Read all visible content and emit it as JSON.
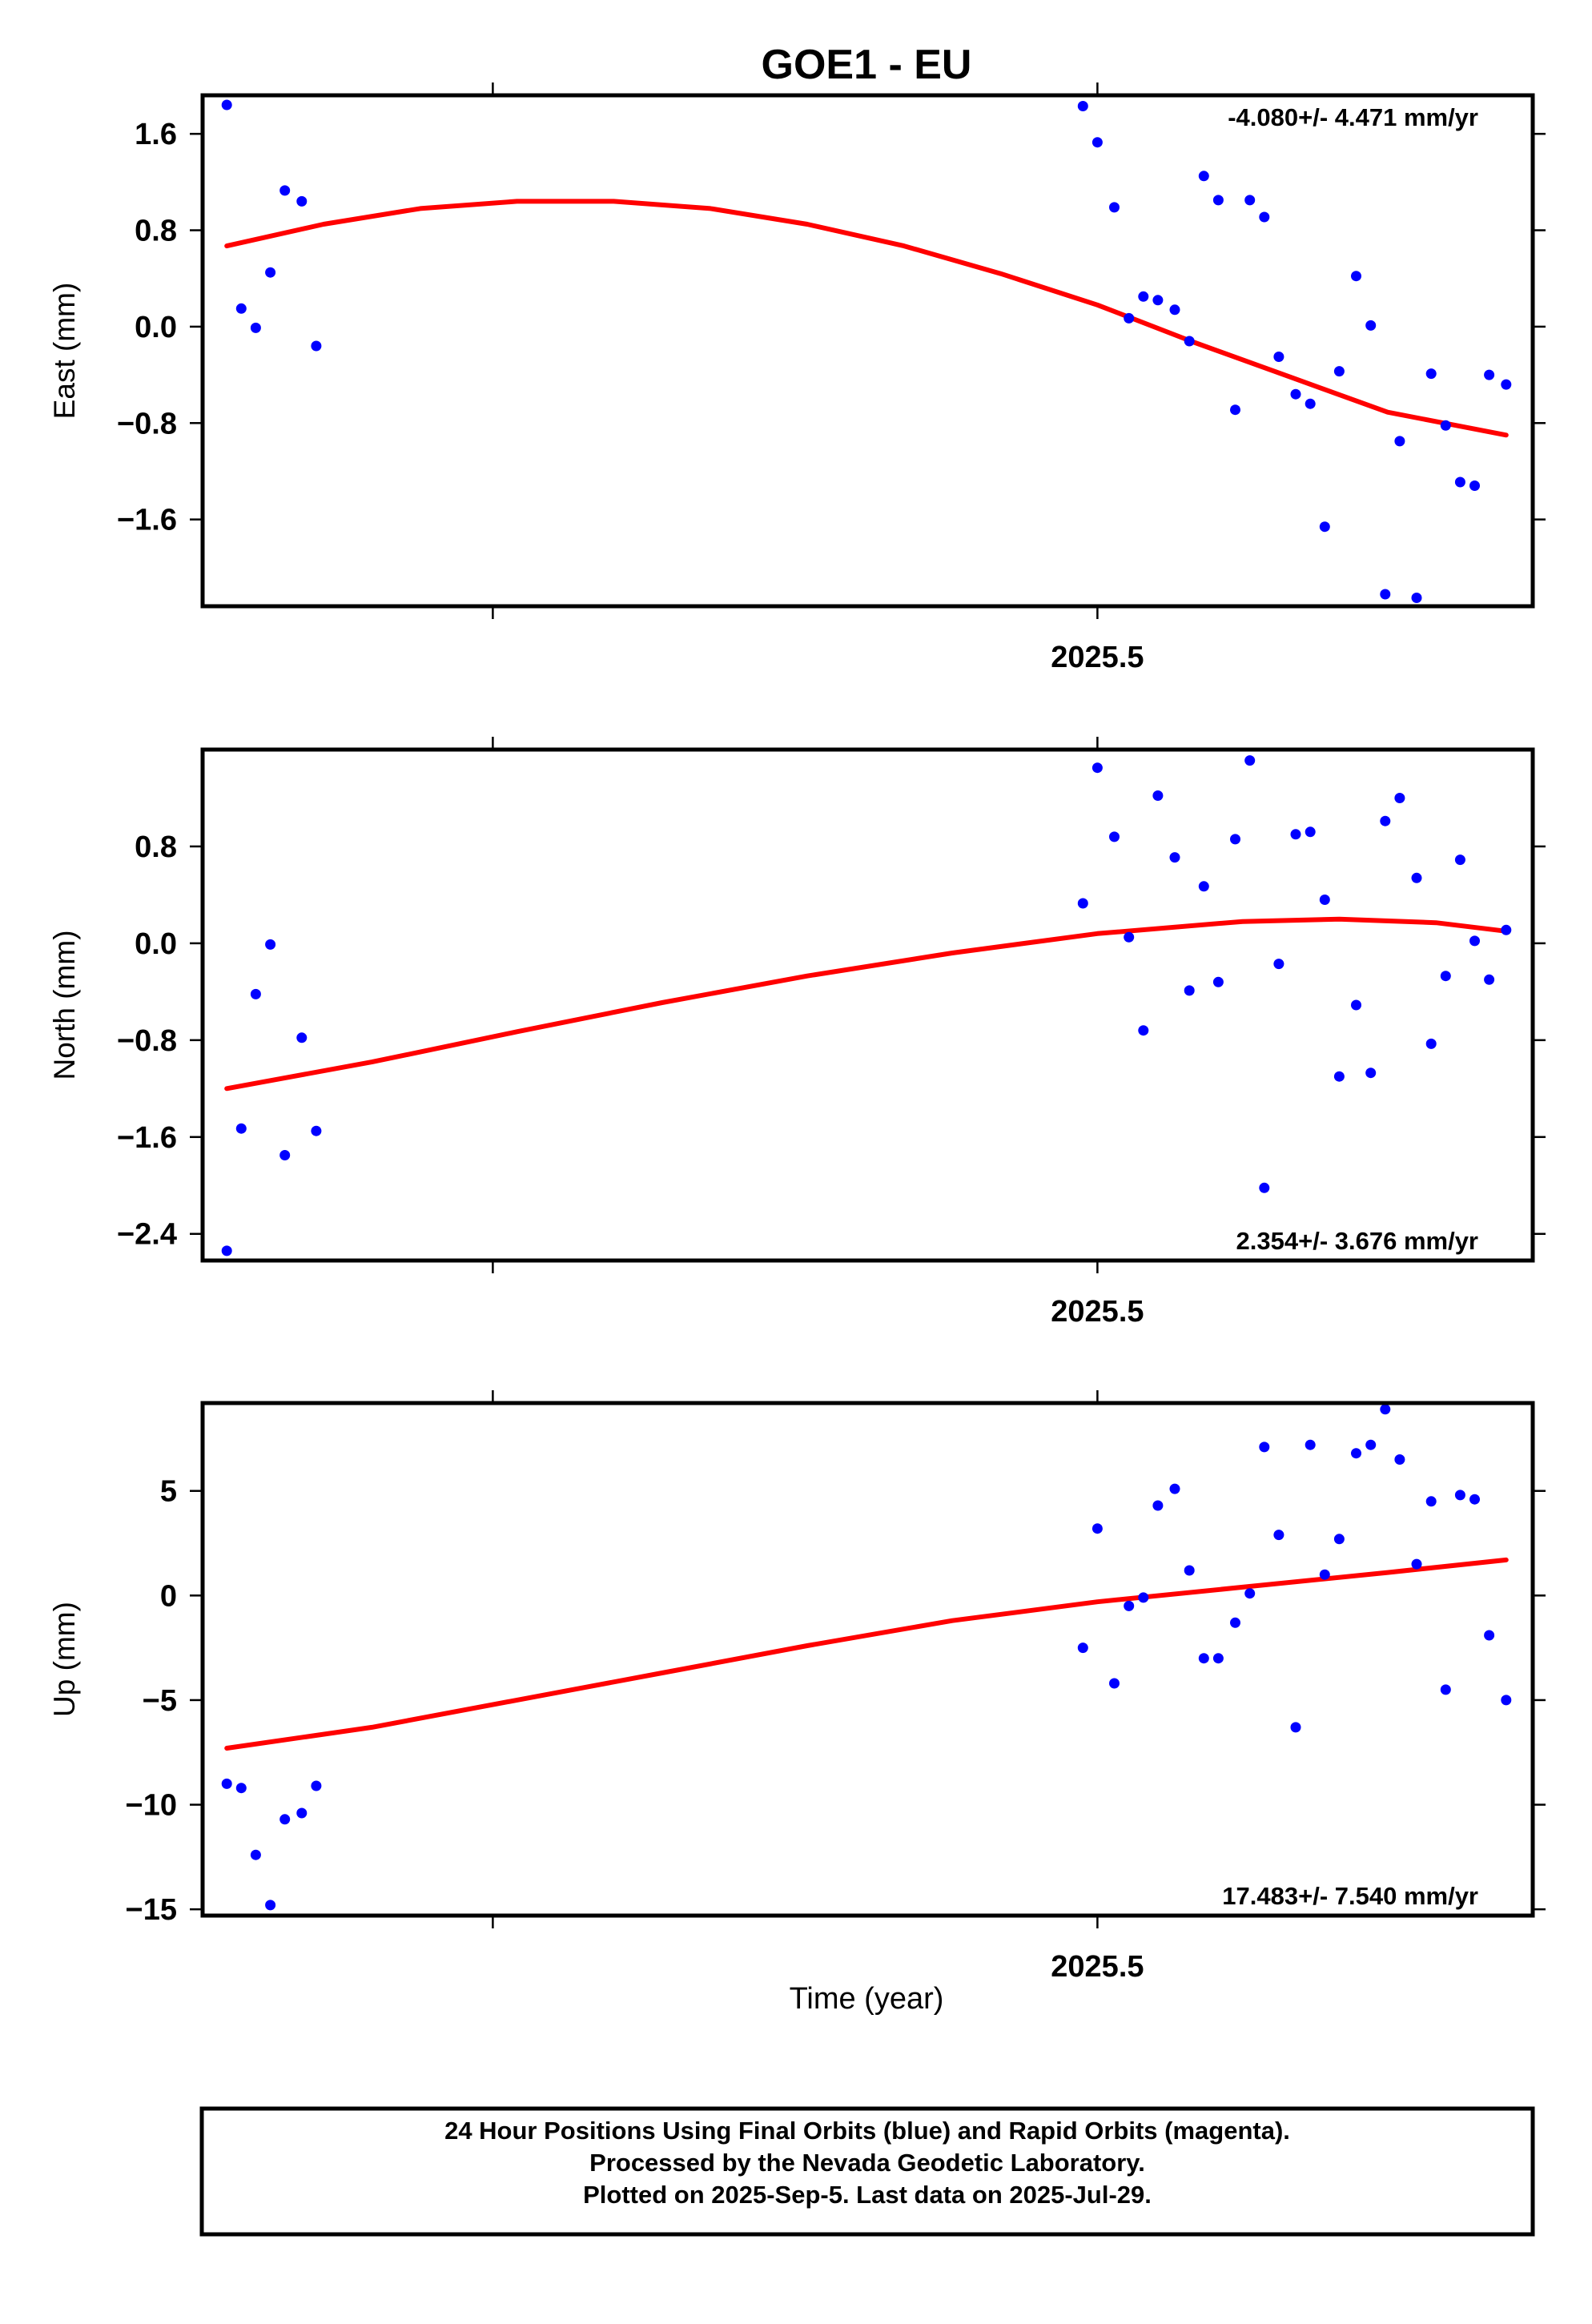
{
  "title": "GOE1 - EU",
  "xlabel": "Time (year)",
  "footer": {
    "line1": "24 Hour Positions Using Final Orbits (blue) and Rapid Orbits (magenta).",
    "line2": "Processed by the Nevada Geodetic Laboratory.",
    "line3": "Plotted on 2025-Sep-5. Last data on 2025-Jul-29."
  },
  "colors": {
    "points": "#0000ff",
    "fit": "#ff0000",
    "frame": "#000000"
  },
  "chart_data": [
    {
      "type": "scatter",
      "ylabel": "East (mm)",
      "rate_label": "-4.080+/- 4.471 mm/yr",
      "rate_position": "top-right",
      "xlim": [
        2025.13,
        2025.68
      ],
      "ylim": [
        -2.32,
        1.92
      ],
      "xticks": [
        2025.5
      ],
      "xtick_labels": [
        "2025.5"
      ],
      "yticks": [
        -1.6,
        -0.8,
        0.0,
        0.8,
        1.6
      ],
      "ytick_labels": [
        "−1.6",
        "−0.8",
        "0.0",
        "0.8",
        "1.6"
      ],
      "grid": false,
      "series": [
        {
          "marker": "dot",
          "x": [
            2025.14,
            2025.146,
            2025.152,
            2025.158,
            2025.164,
            2025.171,
            2025.177,
            2025.494,
            2025.5,
            2025.507,
            2025.513,
            2025.519,
            2025.525,
            2025.532,
            2025.538,
            2025.544,
            2025.55,
            2025.557,
            2025.563,
            2025.569,
            2025.575,
            2025.582,
            2025.588,
            2025.594,
            2025.6,
            2025.607,
            2025.613,
            2025.619,
            2025.625,
            2025.632,
            2025.638,
            2025.644,
            2025.65,
            2025.656,
            2025.662,
            2025.669
          ],
          "y": [
            1.84,
            0.15,
            -0.01,
            0.45,
            1.13,
            1.04,
            -0.16,
            1.83,
            1.53,
            0.99,
            0.07,
            0.25,
            0.22,
            0.14,
            -0.12,
            1.25,
            1.05,
            -0.69,
            1.05,
            0.91,
            -0.25,
            -0.56,
            -0.64,
            -1.66,
            -0.37,
            0.42,
            0.01,
            -2.22,
            -0.95,
            -2.25,
            -0.39,
            -0.82,
            -1.29,
            -1.32,
            -0.4,
            -0.48
          ]
        },
        {
          "name": "fit",
          "line": true,
          "x": [
            2025.14,
            2025.18,
            2025.22,
            2025.26,
            2025.3,
            2025.34,
            2025.38,
            2025.42,
            2025.46,
            2025.5,
            2025.54,
            2025.58,
            2025.62,
            2025.669
          ],
          "y": [
            0.67,
            0.85,
            0.98,
            1.04,
            1.04,
            0.98,
            0.85,
            0.67,
            0.44,
            0.18,
            -0.13,
            -0.42,
            -0.71,
            -0.9
          ]
        }
      ]
    },
    {
      "type": "scatter",
      "ylabel": "North (mm)",
      "rate_label": "2.354+/- 3.676 mm/yr",
      "rate_position": "bottom-right",
      "xlim": [
        2025.13,
        2025.68
      ],
      "ylim": [
        -2.62,
        1.6
      ],
      "xticks": [
        2025.5
      ],
      "xtick_labels": [
        "2025.5"
      ],
      "yticks": [
        -2.4,
        -1.6,
        -0.8,
        0.0,
        0.8
      ],
      "ytick_labels": [
        "−2.4",
        "−1.6",
        "−0.8",
        "0.0",
        "0.8"
      ],
      "grid": false,
      "series": [
        {
          "marker": "dot",
          "x": [
            2025.14,
            2025.146,
            2025.152,
            2025.158,
            2025.164,
            2025.171,
            2025.177,
            2025.494,
            2025.5,
            2025.507,
            2025.513,
            2025.519,
            2025.525,
            2025.532,
            2025.538,
            2025.544,
            2025.55,
            2025.557,
            2025.563,
            2025.569,
            2025.575,
            2025.582,
            2025.588,
            2025.594,
            2025.6,
            2025.607,
            2025.613,
            2025.619,
            2025.625,
            2025.632,
            2025.638,
            2025.644,
            2025.65,
            2025.656,
            2025.662,
            2025.669
          ],
          "y": [
            -2.54,
            -1.53,
            -0.42,
            -0.01,
            -1.75,
            -0.78,
            -1.55,
            0.33,
            1.45,
            0.88,
            0.05,
            -0.72,
            1.22,
            0.71,
            -0.39,
            0.47,
            -0.32,
            0.86,
            1.51,
            -2.02,
            -0.17,
            0.9,
            0.92,
            0.36,
            -1.1,
            -0.51,
            -1.07,
            1.01,
            1.2,
            0.54,
            -0.83,
            -0.27,
            0.69,
            0.02,
            -0.3,
            0.11
          ]
        },
        {
          "name": "fit",
          "line": true,
          "x": [
            2025.14,
            2025.2,
            2025.26,
            2025.32,
            2025.38,
            2025.44,
            2025.5,
            2025.56,
            2025.6,
            2025.64,
            2025.669
          ],
          "y": [
            -1.2,
            -0.98,
            -0.73,
            -0.49,
            -0.27,
            -0.08,
            0.08,
            0.18,
            0.2,
            0.17,
            0.1
          ]
        }
      ]
    },
    {
      "type": "scatter",
      "ylabel": "Up (mm)",
      "rate_label": "17.483+/- 7.540 mm/yr",
      "rate_position": "bottom-right",
      "xlim": [
        2025.13,
        2025.68
      ],
      "ylim": [
        -15.3,
        9.2
      ],
      "xticks": [
        2025.5
      ],
      "xtick_labels": [
        "2025.5"
      ],
      "yticks": [
        -15,
        -10,
        -5,
        0,
        5
      ],
      "ytick_labels": [
        "−15",
        "−10",
        "−5",
        "0",
        "5"
      ],
      "grid": false,
      "series": [
        {
          "marker": "dot",
          "x": [
            2025.14,
            2025.146,
            2025.152,
            2025.158,
            2025.164,
            2025.171,
            2025.177,
            2025.494,
            2025.5,
            2025.507,
            2025.513,
            2025.519,
            2025.525,
            2025.532,
            2025.538,
            2025.544,
            2025.55,
            2025.557,
            2025.563,
            2025.569,
            2025.575,
            2025.582,
            2025.588,
            2025.594,
            2025.6,
            2025.607,
            2025.613,
            2025.619,
            2025.625,
            2025.632,
            2025.638,
            2025.644,
            2025.65,
            2025.656,
            2025.662,
            2025.669
          ],
          "y": [
            -9.0,
            -9.2,
            -12.4,
            -14.8,
            -10.7,
            -10.4,
            -9.1,
            -2.5,
            3.2,
            -4.2,
            -0.5,
            -0.1,
            4.3,
            5.1,
            1.2,
            -3.0,
            -3.0,
            -1.3,
            0.1,
            7.1,
            2.9,
            -6.3,
            7.2,
            1.0,
            2.7,
            6.8,
            7.2,
            8.9,
            6.5,
            1.5,
            4.5,
            -4.5,
            4.8,
            4.6,
            -1.9,
            -5.0
          ]
        },
        {
          "name": "fit",
          "line": true,
          "x": [
            2025.14,
            2025.2,
            2025.26,
            2025.32,
            2025.38,
            2025.44,
            2025.5,
            2025.56,
            2025.62,
            2025.669
          ],
          "y": [
            -7.3,
            -6.3,
            -5.0,
            -3.7,
            -2.4,
            -1.2,
            -0.3,
            0.4,
            1.1,
            1.7
          ]
        }
      ]
    }
  ]
}
